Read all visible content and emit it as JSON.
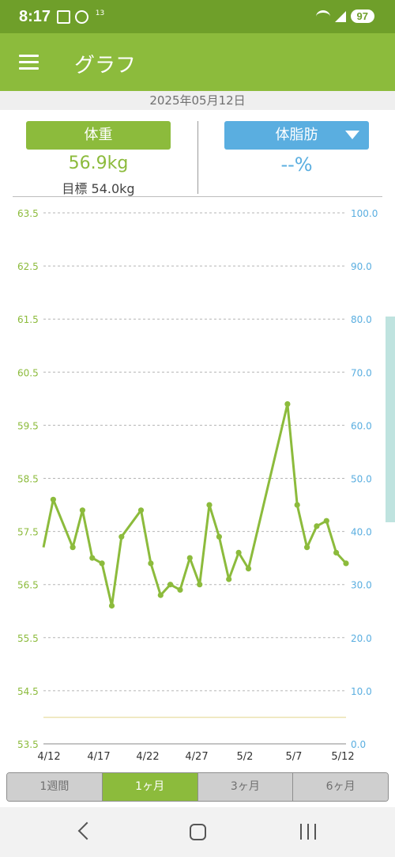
{
  "status_bar": {
    "time": "8:17",
    "step_counter": "13",
    "battery": "97"
  },
  "app_bar": {
    "title": "グラフ"
  },
  "date": "2025年05月12日",
  "weight_panel": {
    "button_label": "体重",
    "value": "56.9kg",
    "goal": "目標 54.0kg"
  },
  "fat_panel": {
    "button_label": "体脂肪",
    "value": "--%"
  },
  "range_tabs": [
    {
      "label": "1週間"
    },
    {
      "label": "1ヶ月"
    },
    {
      "label": "3ヶ月"
    },
    {
      "label": "6ヶ月"
    }
  ],
  "active_tab": 1,
  "chart_data": {
    "type": "line",
    "left_axis": {
      "ticks": [
        "63.5",
        "62.5",
        "61.5",
        "60.5",
        "59.5",
        "58.5",
        "57.5",
        "56.5",
        "55.5",
        "54.5",
        "53.5"
      ],
      "range": [
        53.5,
        63.5
      ],
      "color": "#8cbb3c"
    },
    "right_axis": {
      "ticks": [
        "100.0",
        "90.0",
        "80.0",
        "70.0",
        "60.0",
        "50.0",
        "40.0",
        "30.0",
        "20.0",
        "10.0",
        "0.0"
      ],
      "range": [
        0,
        100
      ],
      "color": "#5aaee0"
    },
    "x_tick_labels": [
      "4/12",
      "4/17",
      "4/22",
      "4/27",
      "5/2",
      "5/7",
      "5/12"
    ],
    "goal_value": 54.0,
    "series": [
      {
        "color": "#8cbb3c",
        "points": [
          {
            "x": "2025-04-11",
            "y": 57.2
          },
          {
            "x": "2025-04-12",
            "y": 58.1
          },
          {
            "x": "2025-04-14",
            "y": 57.2
          },
          {
            "x": "2025-04-15",
            "y": 57.9
          },
          {
            "x": "2025-04-16",
            "y": 57.0
          },
          {
            "x": "2025-04-17",
            "y": 56.9
          },
          {
            "x": "2025-04-18",
            "y": 56.1
          },
          {
            "x": "2025-04-19",
            "y": 57.4
          },
          {
            "x": "2025-04-21",
            "y": 57.9
          },
          {
            "x": "2025-04-22",
            "y": 56.9
          },
          {
            "x": "2025-04-23",
            "y": 56.3
          },
          {
            "x": "2025-04-24",
            "y": 56.5
          },
          {
            "x": "2025-04-25",
            "y": 56.4
          },
          {
            "x": "2025-04-26",
            "y": 57.0
          },
          {
            "x": "2025-04-27",
            "y": 56.5
          },
          {
            "x": "2025-04-28",
            "y": 58.0
          },
          {
            "x": "2025-04-29",
            "y": 57.4
          },
          {
            "x": "2025-04-30",
            "y": 56.6
          },
          {
            "x": "2025-05-01",
            "y": 57.1
          },
          {
            "x": "2025-05-02",
            "y": 56.8
          },
          {
            "x": "2025-05-06",
            "y": 59.9
          },
          {
            "x": "2025-05-07",
            "y": 58.0
          },
          {
            "x": "2025-05-08",
            "y": 57.2
          },
          {
            "x": "2025-05-09",
            "y": 57.6
          },
          {
            "x": "2025-05-10",
            "y": 57.7
          },
          {
            "x": "2025-05-11",
            "y": 57.1
          },
          {
            "x": "2025-05-12",
            "y": 56.9
          }
        ]
      }
    ]
  }
}
